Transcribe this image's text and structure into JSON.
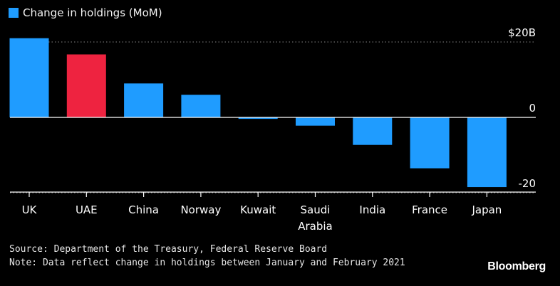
{
  "legend": {
    "label": "Change in holdings (MoM)",
    "color": "#1f9cff"
  },
  "chart_data": {
    "type": "bar",
    "categories": [
      "UK",
      "UAE",
      "China",
      "Norway",
      "Kuwait",
      "Saudi Arabia",
      "India",
      "France",
      "Japan"
    ],
    "series": [
      {
        "name": "Change in holdings (MoM)",
        "values": [
          21,
          16.7,
          9,
          6,
          -0.4,
          -2.2,
          -7.3,
          -13.5,
          -18.5
        ]
      }
    ],
    "highlight_index": 1,
    "colors": {
      "default": "#1f9cff",
      "highlight": "#ee2340"
    },
    "yticks": [
      {
        "value": 20,
        "label": "$20B"
      },
      {
        "value": 0,
        "label": "0"
      },
      {
        "value": -20,
        "label": "-20"
      }
    ],
    "ylim": [
      -20,
      20
    ],
    "title": "",
    "xlabel": "",
    "ylabel": ""
  },
  "footer": {
    "source": "Source: Department of the Treasury, Federal Reserve Board",
    "note": "Note: Data reflect change in holdings between January and February 2021",
    "brand": "Bloomberg"
  }
}
